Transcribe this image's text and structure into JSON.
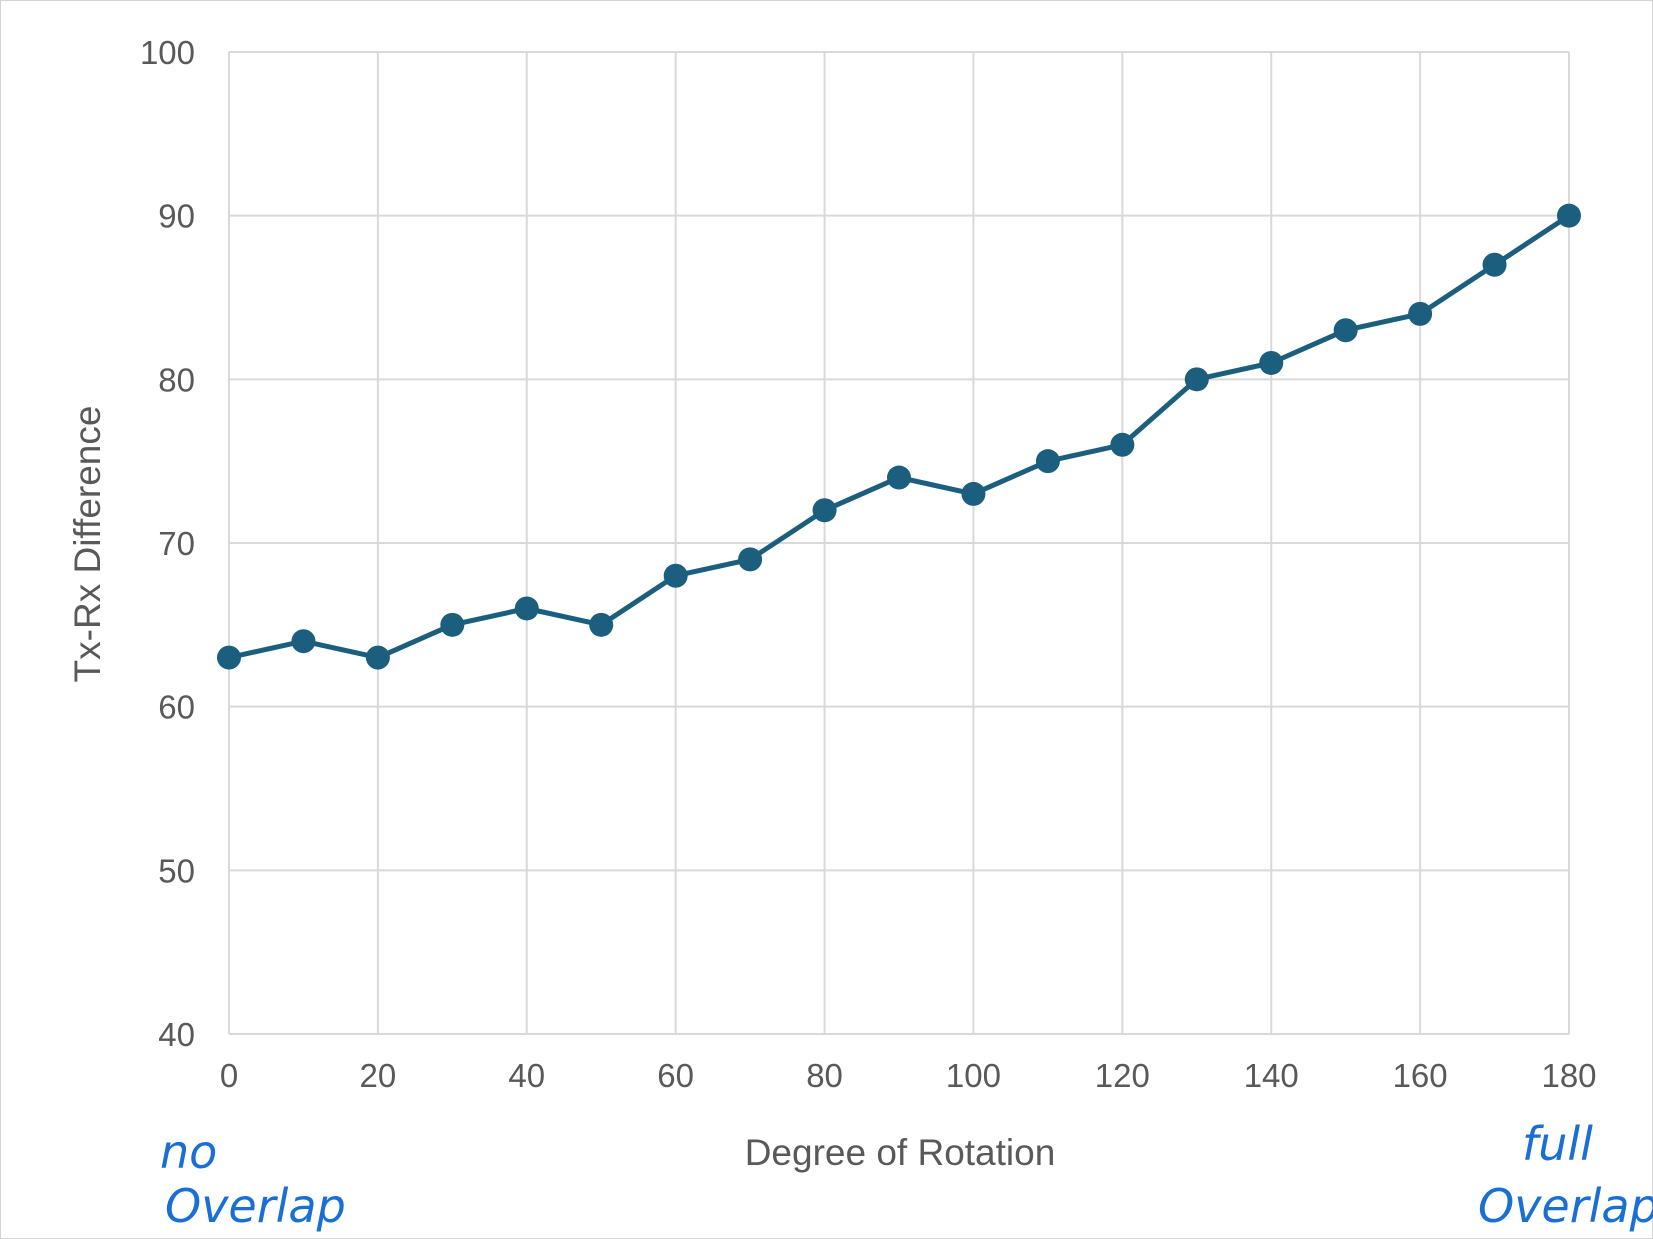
{
  "chart_data": {
    "type": "line",
    "title": "",
    "xlabel": "Degree of Rotation",
    "ylabel": "Tx-Rx Difference",
    "xlim": [
      0,
      180
    ],
    "ylim": [
      40,
      100
    ],
    "x_ticks": [
      0,
      20,
      40,
      60,
      80,
      100,
      120,
      140,
      160,
      180
    ],
    "y_ticks": [
      40,
      50,
      60,
      70,
      80,
      90,
      100
    ],
    "grid": true,
    "legend": "none",
    "series": [
      {
        "color": "#1b5e7e",
        "x": [
          0,
          10,
          20,
          30,
          40,
          50,
          60,
          70,
          80,
          90,
          100,
          110,
          120,
          130,
          140,
          150,
          160,
          170,
          180
        ],
        "y": [
          63,
          64,
          63,
          65,
          66,
          65,
          68,
          69,
          72,
          74,
          73,
          75,
          76,
          80,
          81,
          83,
          84,
          87,
          90
        ]
      }
    ],
    "annotations": {
      "left_line1": "no",
      "left_line2": "Overlap",
      "right_line1": "full",
      "right_line2": "Overlap",
      "color": "#1a6fd6"
    }
  }
}
